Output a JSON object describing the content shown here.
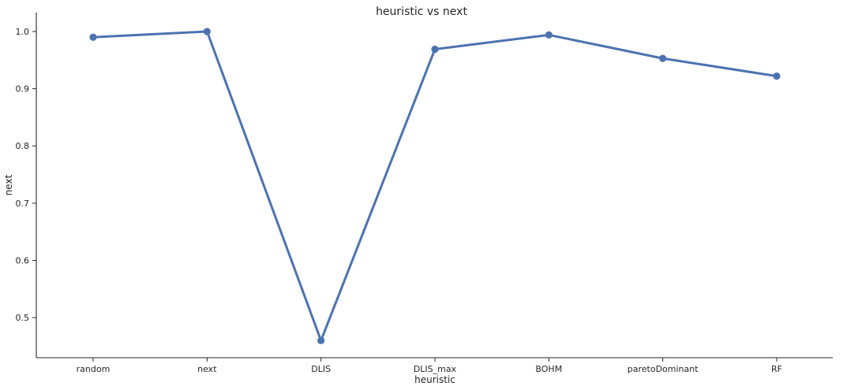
{
  "chart_data": {
    "type": "line",
    "title": "heuristic vs next",
    "xlabel": "heuristic",
    "ylabel": "next",
    "categories": [
      "random",
      "next",
      "DLIS",
      "DLIS_max",
      "BOHM",
      "paretoDominant",
      "RF"
    ],
    "values": [
      0.99,
      1.0,
      0.46,
      0.969,
      0.994,
      0.953,
      0.922
    ],
    "ylim": [
      0.43,
      1.033
    ],
    "yticks": [
      "0.5",
      "0.6",
      "0.7",
      "0.8",
      "0.9",
      "1.0"
    ],
    "grid": false,
    "color": "#4c72b0"
  }
}
